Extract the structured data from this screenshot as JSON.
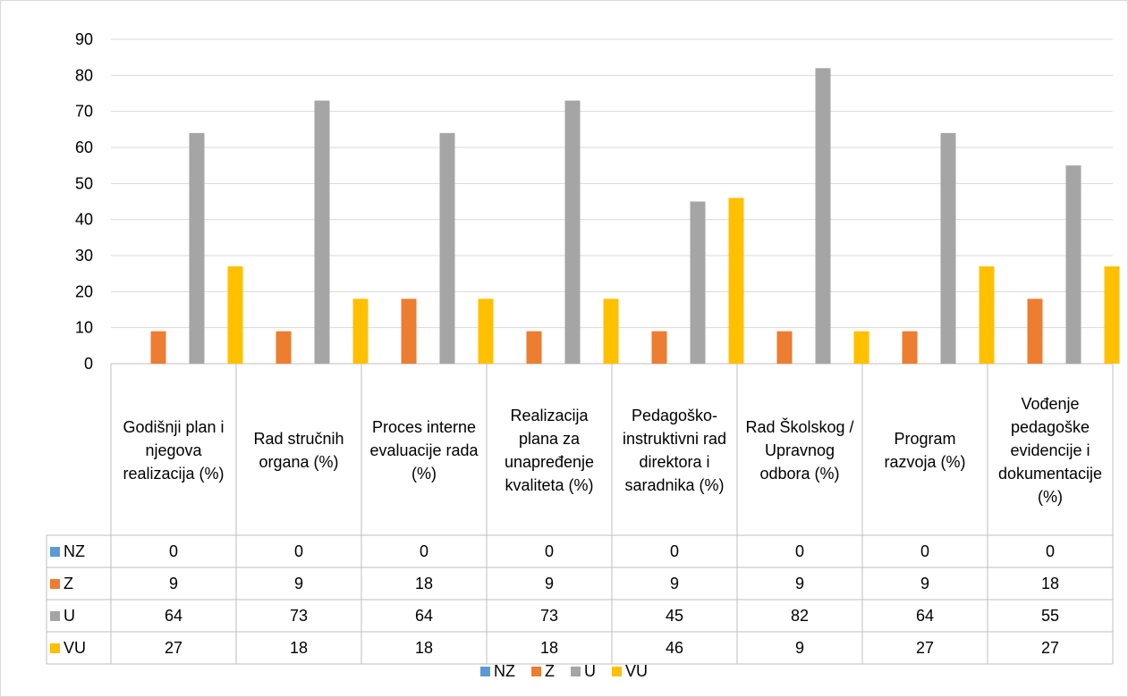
{
  "chart_data": {
    "type": "bar",
    "categories": [
      "Godišnji plan i njegova realizacija (%)",
      "Rad stručnih organa (%)",
      "Proces interne evaluacije rada (%)",
      "Realizacija plana za unapređenje kvaliteta (%)",
      "Pedagoško-instruktivni rad direktora i saradnika (%)",
      "Rad Školskog / Upravnog odbora (%)",
      "Program razvoja (%)",
      "Vođenje pedagoške evidencije i dokumentacije (%)"
    ],
    "series": [
      {
        "name": "NZ",
        "color": "#5b9bd5",
        "values": [
          0,
          0,
          0,
          0,
          0,
          0,
          0,
          0
        ]
      },
      {
        "name": "Z",
        "color": "#ed7d31",
        "values": [
          9,
          9,
          18,
          9,
          9,
          9,
          9,
          18
        ]
      },
      {
        "name": "U",
        "color": "#a5a5a5",
        "values": [
          64,
          73,
          64,
          73,
          45,
          82,
          64,
          55
        ]
      },
      {
        "name": "VU",
        "color": "#ffc000",
        "values": [
          27,
          18,
          18,
          18,
          46,
          9,
          27,
          27
        ]
      }
    ],
    "ylim": [
      0,
      90
    ],
    "yticks": [
      0,
      10,
      20,
      30,
      40,
      50,
      60,
      70,
      80,
      90
    ],
    "grid": true,
    "data_table": true,
    "legend_position": "bottom"
  }
}
